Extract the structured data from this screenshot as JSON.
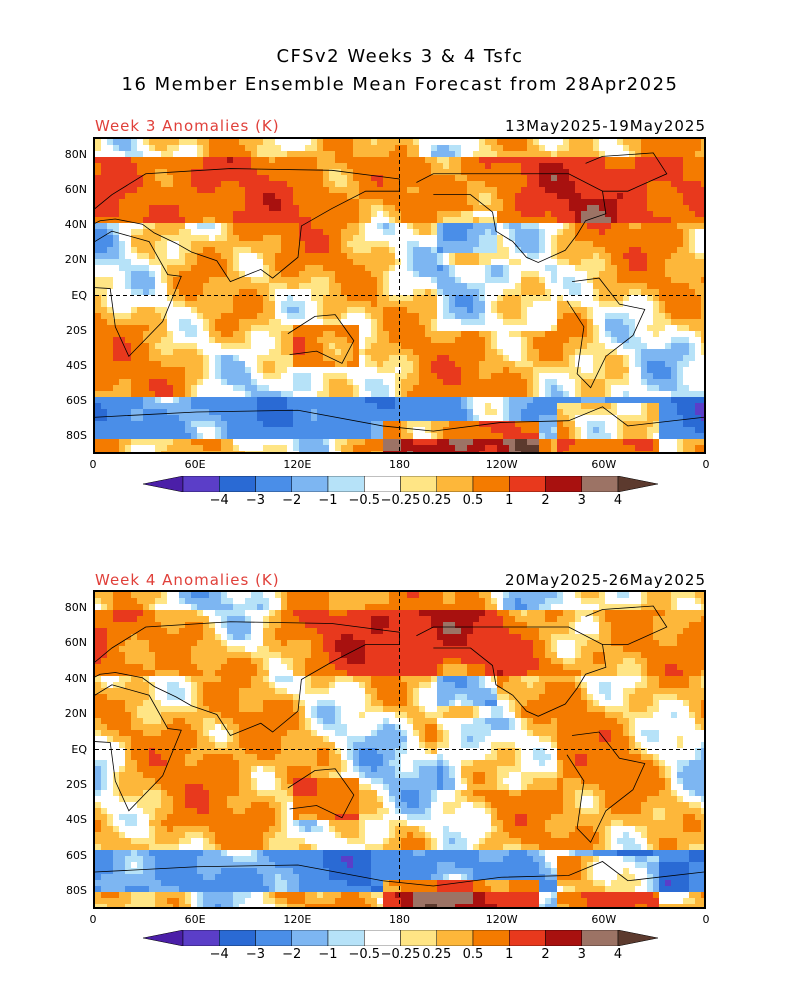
{
  "header": {
    "title_line1": "CFSv2 Weeks 3 & 4 Tsfc",
    "title_line2": "16 Member Ensemble Mean Forecast from 28Apr2025"
  },
  "panels": [
    {
      "label": "Week 3 Anomalies (K)",
      "dates": "13May2025-19May2025"
    },
    {
      "label": "Week 4 Anomalies (K)",
      "dates": "20May2025-26May2025"
    }
  ],
  "axes": {
    "lat_labels": [
      "80N",
      "60N",
      "40N",
      "20N",
      "EQ",
      "20S",
      "40S",
      "60S",
      "80S"
    ],
    "lon_labels": [
      "0",
      "60E",
      "120E",
      "180",
      "120W",
      "60W",
      "0"
    ]
  },
  "colorbar": {
    "labels": [
      "-4",
      "-3",
      "-2",
      "-1",
      "-0.5",
      "-0.25",
      "0.25",
      "0.5",
      "1",
      "2",
      "3",
      "4"
    ],
    "colors": [
      "#4b1fa8",
      "#5b3ec8",
      "#2a6ad4",
      "#4a8ee8",
      "#7db6f2",
      "#b6e2f8",
      "#ffffff",
      "#ffe585",
      "#fdb73a",
      "#f47b00",
      "#e8391d",
      "#a8110f",
      "#9c7365",
      "#5c3a2e"
    ]
  }
}
